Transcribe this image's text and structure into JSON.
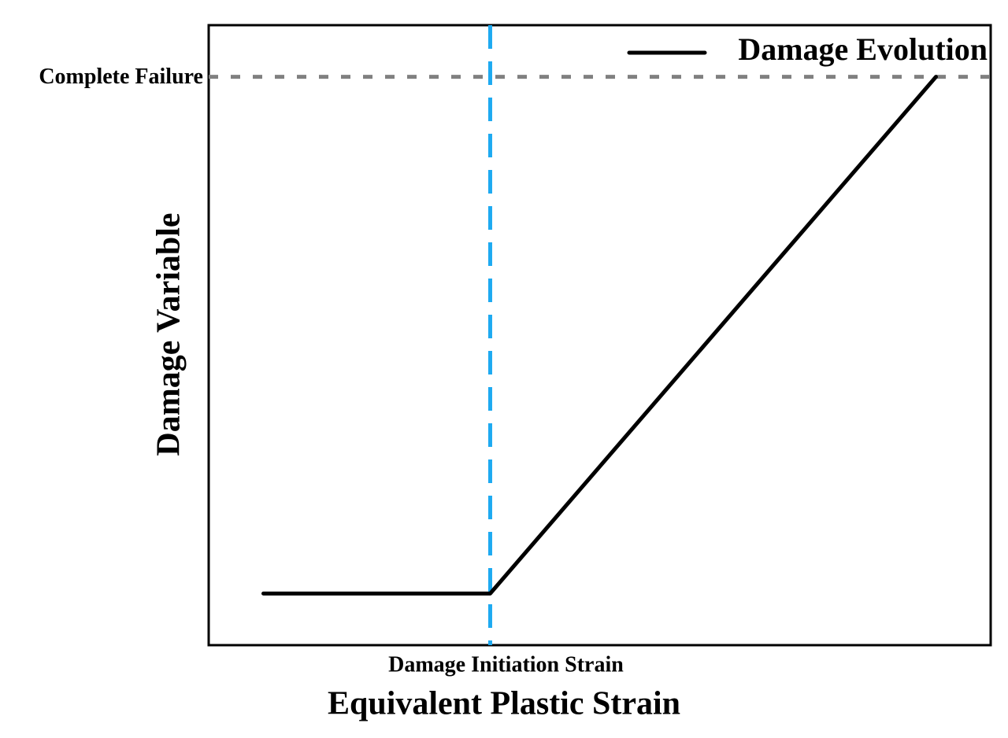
{
  "chart_data": {
    "type": "line",
    "x_label": "Equivalent Plastic Strain",
    "y_label": "Damage Variable",
    "x": [
      0.07,
      0.36,
      0.93
    ],
    "series": [
      {
        "name": "Damage Evolution",
        "color": "#000000",
        "values": [
          0,
          0,
          1
        ]
      }
    ],
    "xlim": [
      0,
      1
    ],
    "ylim": [
      -0.1,
      1.1
    ],
    "grid": false,
    "legend": "upper right",
    "reference_lines": [
      {
        "orientation": "vertical",
        "x": 0.36,
        "label": "Damage Initiation Strain",
        "color": "#1eaaf1"
      },
      {
        "orientation": "horizontal",
        "y": 1,
        "label": "Complete Failure",
        "color": "#808080"
      }
    ]
  }
}
